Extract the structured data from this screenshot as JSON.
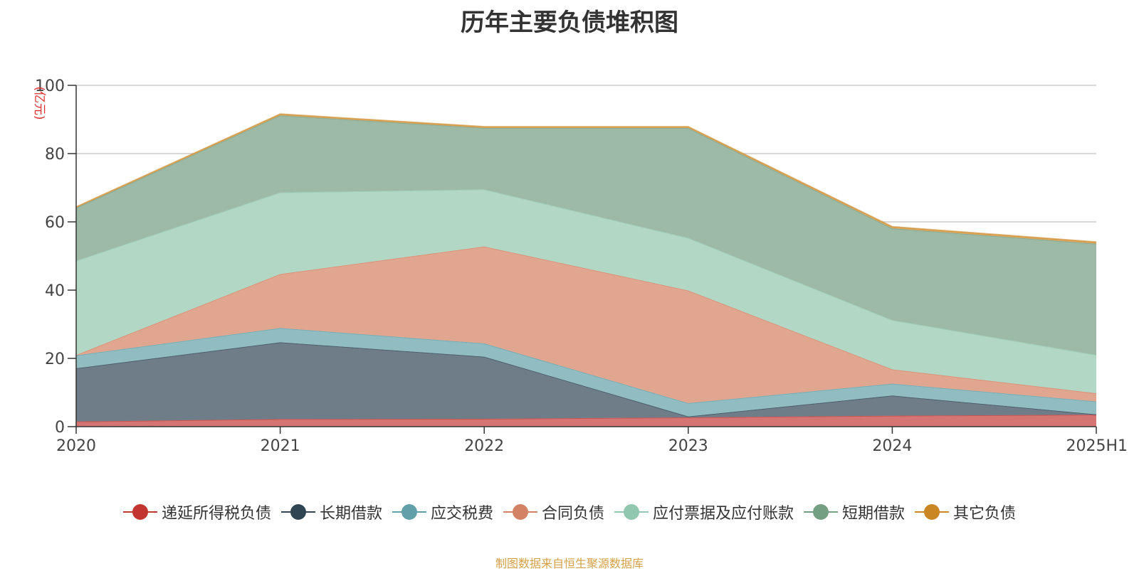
{
  "chart_data": {
    "type": "area",
    "stacked": true,
    "title": "历年主要负债堆积图",
    "ylabel": "(亿元)",
    "xlabel": "",
    "ylim": [
      0,
      100
    ],
    "yticks": [
      0,
      20,
      40,
      60,
      80,
      100
    ],
    "categories": [
      "2020",
      "2021",
      "2022",
      "2023",
      "2024",
      "2025H1"
    ],
    "grid": true,
    "legend_position": "bottom",
    "series": [
      {
        "name": "递延所得税负债",
        "color": "#c23531",
        "area_color": "#d57573",
        "values": [
          1.5,
          2.2,
          2.3,
          2.7,
          3.2,
          3.5
        ]
      },
      {
        "name": "长期借款",
        "color": "#2f4554",
        "area_color": "#6e7d88",
        "values": [
          15.6,
          22.5,
          18.2,
          0.3,
          5.9,
          0.1
        ]
      },
      {
        "name": "应交税费",
        "color": "#61a0a8",
        "area_color": "#90bcc2",
        "values": [
          3.8,
          4.2,
          3.9,
          3.9,
          3.5,
          3.8
        ]
      },
      {
        "name": "合同负债",
        "color": "#d48265",
        "area_color": "#e1a690",
        "values": [
          0.1,
          15.8,
          28.4,
          33.0,
          4.2,
          2.4
        ]
      },
      {
        "name": "应付票据及应付账款",
        "color": "#91c7ae",
        "area_color": "#b2d8c5",
        "values": [
          27.6,
          23.9,
          16.7,
          15.4,
          14.4,
          11.2
        ]
      },
      {
        "name": "短期借款",
        "color": "#749f83",
        "area_color": "#9dbaa7",
        "values": [
          15.5,
          22.6,
          18.0,
          32.2,
          26.9,
          32.6
        ]
      },
      {
        "name": "其它负债",
        "color": "#ca8622",
        "area_color": "#dca75e",
        "values": [
          0.3,
          0.4,
          0.4,
          0.4,
          0.5,
          0.5
        ]
      }
    ]
  },
  "footer": {
    "source": "制图数据来自恒生聚源数据库"
  }
}
